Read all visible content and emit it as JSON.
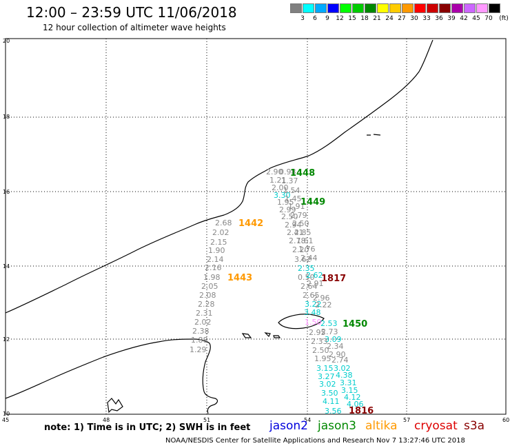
{
  "header": {
    "title": "12:00 – 23:59 UTC 11/06/2018",
    "subtitle": "12 hour collection of altimeter wave heights"
  },
  "legend": {
    "colors": [
      "#808080",
      "#00ffff",
      "#00aaff",
      "#0000ff",
      "#00ff00",
      "#00cc00",
      "#008800",
      "#ffff00",
      "#ffcc00",
      "#ff9900",
      "#ff0000",
      "#cc0000",
      "#880000",
      "#aa00aa",
      "#cc66ff",
      "#ff99ff",
      "#000000"
    ],
    "labels": [
      "3",
      "6",
      "9",
      "12",
      "15",
      "18",
      "21",
      "24",
      "27",
      "30",
      "33",
      "36",
      "39",
      "42",
      "45",
      "70",
      "(ft)"
    ]
  },
  "axes": {
    "lat_labels": [
      "20",
      "18",
      "16",
      "14",
      "12",
      "10"
    ],
    "lon_labels": [
      "45",
      "48",
      "51",
      "54",
      "57",
      "60"
    ]
  },
  "colors": {
    "swh_gray": "#888888",
    "swh_cyan": "#00cccc",
    "swh_pink": "#ff88ff",
    "jason2": "#0000dd",
    "jason3": "#008800",
    "altika": "#ff9900",
    "cryosat": "#dd0000",
    "s3a": "#880000"
  },
  "tracks": {
    "altika_a": [
      "2.68",
      "2.02",
      "2.15",
      "1.90",
      "2.14",
      "2.16"
    ],
    "altika_b": [
      "1.98",
      "2.05",
      "2.08",
      "2.28",
      "2.31",
      "2.02",
      "2.38",
      "1.88",
      "1.29"
    ],
    "jason3_top": [
      "2.90",
      "0.98",
      "1.21",
      "1.37",
      "2.00",
      "1.54",
      "3.30",
      "1.45",
      "1.95",
      "1.91",
      "2.99",
      "2.79",
      "2.50",
      "2.50",
      "2.94",
      "2.85",
      "2.41",
      "1.61",
      "2.78",
      "1.76",
      "2.20",
      "2.44"
    ],
    "s3a_mid": [
      "3.62",
      "2.35",
      "0.50",
      "2.62",
      "2.91",
      "2.64",
      "2.65",
      "2.96",
      "3.22",
      "2.22",
      "3.48"
    ],
    "j3_right": [
      "2.53",
      "2.73",
      "2.95",
      "3.09",
      "2.33",
      "2.34",
      "2.50",
      "2.90",
      "1.95",
      "2.74"
    ],
    "pink_small": "1.50",
    "bottom_cyan": [
      "3.15",
      "3.02",
      "3.27",
      "4.38",
      "3.31",
      "3.02",
      "3.15",
      "3.50",
      "4.12",
      "4.11",
      "4.06",
      "3.56"
    ]
  },
  "passes": {
    "p1448": "1448",
    "p1449": "1449",
    "p1442": "1442",
    "p1443": "1443",
    "p1817": "1817",
    "p1450": "1450",
    "p1816": "1816"
  },
  "footer": {
    "note": "note: 1) Time is in UTC; 2) SWH is in feet",
    "missions": [
      "jason2",
      "jason3",
      "altika",
      "cryosat",
      "s3a"
    ],
    "credit": "NOAA/NESDIS Center for Satellite Applications and Research    Nov  7 13:27:46 UTC 2018"
  }
}
